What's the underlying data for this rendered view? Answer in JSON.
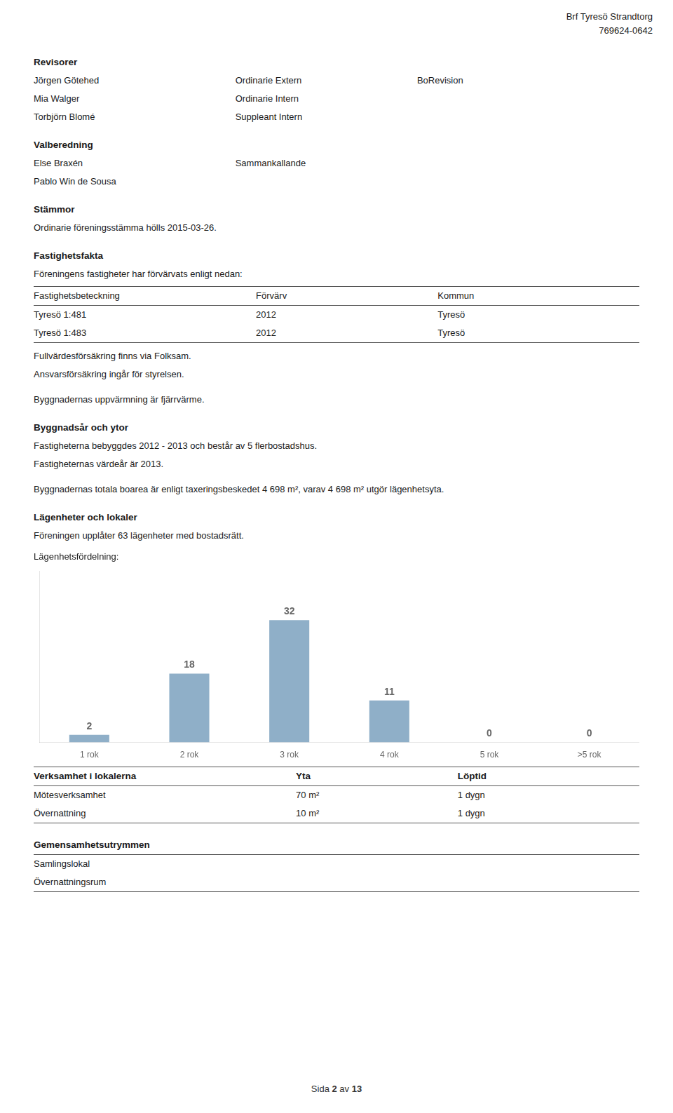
{
  "chart_data": {
    "type": "bar",
    "title": "Lägenhetsfördelning:",
    "categories": [
      "1 rok",
      "2 rok",
      "3 rok",
      "4 rok",
      "5 rok",
      ">5 rok"
    ],
    "values": [
      2,
      18,
      32,
      11,
      0,
      0
    ],
    "color": "#8FAFC8",
    "ylim": [
      0,
      44.8
    ],
    "grid": false,
    "data_labels": true,
    "tick_labels": "x",
    "annotations": [
      [
        "Brf Tyresö Strandtorg"
      ],
      [
        "769624-0642"
      ],
      [
        "Revisorer"
      ],
      [
        "Jörgen Götehed",
        "Ordinarie Extern",
        "BoRevision"
      ],
      [
        "Mia Walger",
        "Ordinarie Intern"
      ],
      [
        "Torbjörn Blomé",
        "Suppleant Intern"
      ],
      [
        "Valberedning"
      ],
      [
        "Else Braxén",
        "Sammankallande"
      ],
      [
        "Pablo Win de Sousa"
      ],
      [
        "Stämmor"
      ],
      [
        "Ordinarie föreningsstämma hölls 2015-03-26."
      ],
      [
        "Fastighetsfakta"
      ],
      [
        "Föreningens fastigheter har förvärvats enligt nedan:"
      ],
      [
        "Fastighetsbeteckning",
        "Förvärv",
        "Kommun"
      ],
      [
        "Tyresö 1:481",
        "2012",
        "Tyresö"
      ],
      [
        "Tyresö 1:483",
        "2012",
        "Tyresö"
      ],
      [
        "Fullvärdesförsäkring finns via Folksam."
      ],
      [
        "Ansvarsförsäkring ingår för styrelsen."
      ],
      [
        "Byggnadernas uppvärmning är fjärrvärme."
      ],
      [
        "Byggnadsår och ytor"
      ],
      [
        "Fastigheterna bebyggdes 2012 - 2013 och består av 5 flerbostadshus."
      ],
      [
        "Fastigheternas värdeår är 2013."
      ],
      [
        "Byggnadernas totala boarea är enligt taxeringsbeskedet 4 698 m², varav 4 698 m² utgör lägenhetsyta."
      ],
      [
        "Lägenheter och lokaler"
      ],
      [
        "Föreningen upplåter 63 lägenheter med bostadsrätt."
      ],
      [
        "Verksamhet i lokalerna",
        "Yta",
        "Löptid"
      ],
      [
        "Mötesverksamhet",
        "70 m²",
        "1 dygn"
      ],
      [
        "Övernattning",
        "10 m²",
        "1 dygn"
      ],
      [
        "Gemensamhetsutrymmen"
      ],
      [
        "Samlingslokal"
      ],
      [
        "Övernattningsrum"
      ],
      [
        "Sida ",
        "2",
        " av ",
        "13"
      ]
    ]
  }
}
